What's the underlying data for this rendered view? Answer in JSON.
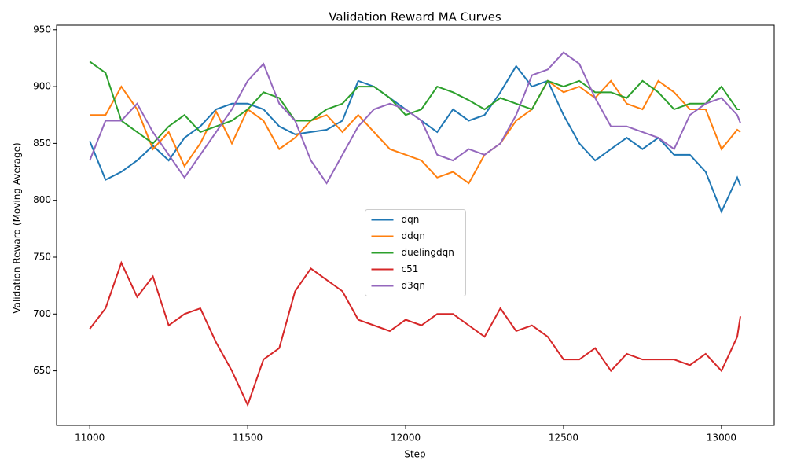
{
  "chart_data": {
    "type": "line",
    "title": "Validation Reward MA Curves",
    "x_label": "Step",
    "y_label": "Validation Reward (Moving Average)",
    "x": [
      11000,
      11050,
      11100,
      11150,
      11200,
      11250,
      11300,
      11350,
      11400,
      11450,
      11500,
      11550,
      11600,
      11650,
      11700,
      11750,
      11800,
      11850,
      11900,
      11950,
      12000,
      12050,
      12100,
      12150,
      12200,
      12250,
      12300,
      12350,
      12400,
      12450,
      12500,
      12550,
      12600,
      12650,
      12700,
      12750,
      12800,
      12850,
      12900,
      12950,
      13000,
      13050,
      13060
    ],
    "series": [
      {
        "name": "dqn",
        "color": "#1f77b4",
        "values": [
          852,
          818,
          825,
          835,
          848,
          835,
          855,
          865,
          880,
          885,
          885,
          880,
          865,
          858,
          860,
          862,
          870,
          905,
          900,
          890,
          880,
          870,
          860,
          880,
          870,
          875,
          895,
          918,
          900,
          905,
          875,
          850,
          835,
          845,
          855,
          845,
          855,
          840,
          840,
          825,
          790,
          820,
          813
        ]
      },
      {
        "name": "ddqn",
        "color": "#ff7f0e",
        "values": [
          875,
          875,
          900,
          880,
          845,
          860,
          830,
          850,
          878,
          850,
          880,
          870,
          845,
          855,
          870,
          875,
          860,
          875,
          860,
          845,
          840,
          835,
          820,
          825,
          815,
          840,
          850,
          870,
          880,
          905,
          895,
          900,
          890,
          905,
          885,
          880,
          905,
          895,
          880,
          880,
          845,
          862,
          860
        ]
      },
      {
        "name": "duelingdqn",
        "color": "#2ca02c",
        "values": [
          922,
          912,
          870,
          860,
          850,
          865,
          875,
          860,
          865,
          870,
          880,
          895,
          890,
          870,
          870,
          880,
          885,
          900,
          900,
          890,
          875,
          880,
          900,
          895,
          888,
          880,
          890,
          885,
          880,
          905,
          900,
          905,
          895,
          895,
          890,
          905,
          895,
          880,
          885,
          885,
          900,
          880,
          880
        ]
      },
      {
        "name": "c51",
        "color": "#d62728",
        "values": [
          687,
          705,
          745,
          715,
          733,
          690,
          700,
          705,
          675,
          650,
          620,
          660,
          670,
          720,
          740,
          730,
          720,
          695,
          690,
          685,
          695,
          690,
          700,
          700,
          690,
          680,
          705,
          685,
          690,
          680,
          660,
          660,
          670,
          650,
          665,
          660,
          660,
          660,
          655,
          665,
          650,
          680,
          698
        ]
      },
      {
        "name": "d3qn",
        "color": "#9467bd",
        "values": [
          835,
          870,
          870,
          885,
          860,
          840,
          820,
          840,
          860,
          880,
          905,
          920,
          885,
          870,
          835,
          815,
          840,
          865,
          880,
          885,
          880,
          870,
          840,
          835,
          845,
          840,
          850,
          875,
          910,
          915,
          930,
          920,
          890,
          865,
          865,
          860,
          855,
          845,
          875,
          885,
          890,
          875,
          868
        ]
      }
    ],
    "xlim": [
      10895,
      13167
    ],
    "xticks": [
      11000,
      11500,
      12000,
      12500,
      13000
    ],
    "ylim": [
      602,
      954
    ],
    "yticks": [
      650,
      700,
      750,
      800,
      850,
      900,
      950
    ],
    "legend": "center"
  }
}
